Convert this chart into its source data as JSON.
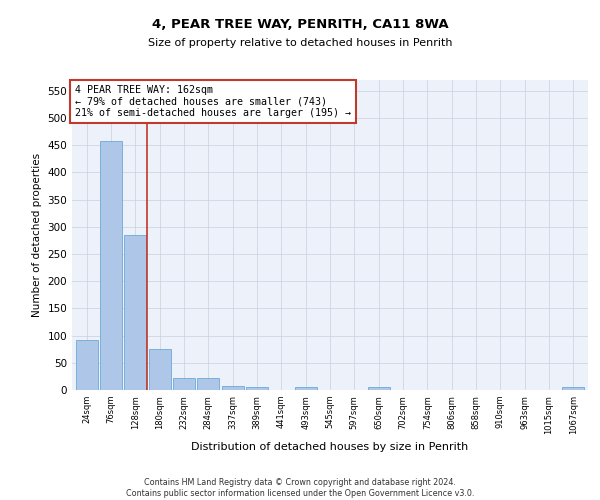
{
  "title": "4, PEAR TREE WAY, PENRITH, CA11 8WA",
  "subtitle": "Size of property relative to detached houses in Penrith",
  "xlabel": "Distribution of detached houses by size in Penrith",
  "ylabel": "Number of detached properties",
  "categories": [
    "24sqm",
    "76sqm",
    "128sqm",
    "180sqm",
    "232sqm",
    "284sqm",
    "337sqm",
    "389sqm",
    "441sqm",
    "493sqm",
    "545sqm",
    "597sqm",
    "650sqm",
    "702sqm",
    "754sqm",
    "806sqm",
    "858sqm",
    "910sqm",
    "963sqm",
    "1015sqm",
    "1067sqm"
  ],
  "values": [
    92,
    458,
    285,
    76,
    22,
    22,
    8,
    6,
    0,
    5,
    0,
    0,
    5,
    0,
    0,
    0,
    0,
    0,
    0,
    0,
    5
  ],
  "bar_color": "#aec6e8",
  "bar_edge_color": "#5a9fd4",
  "vline_x_index": 2.5,
  "vline_color": "#c0392b",
  "annotation_text": "4 PEAR TREE WAY: 162sqm\n← 79% of detached houses are smaller (743)\n21% of semi-detached houses are larger (195) →",
  "annotation_box_color": "#ffffff",
  "annotation_box_edge_color": "#c0392b",
  "ylim": [
    0,
    570
  ],
  "yticks": [
    0,
    50,
    100,
    150,
    200,
    250,
    300,
    350,
    400,
    450,
    500,
    550
  ],
  "footer": "Contains HM Land Registry data © Crown copyright and database right 2024.\nContains public sector information licensed under the Open Government Licence v3.0.",
  "grid_color": "#c8d0e0",
  "bg_color": "#edf1fa"
}
